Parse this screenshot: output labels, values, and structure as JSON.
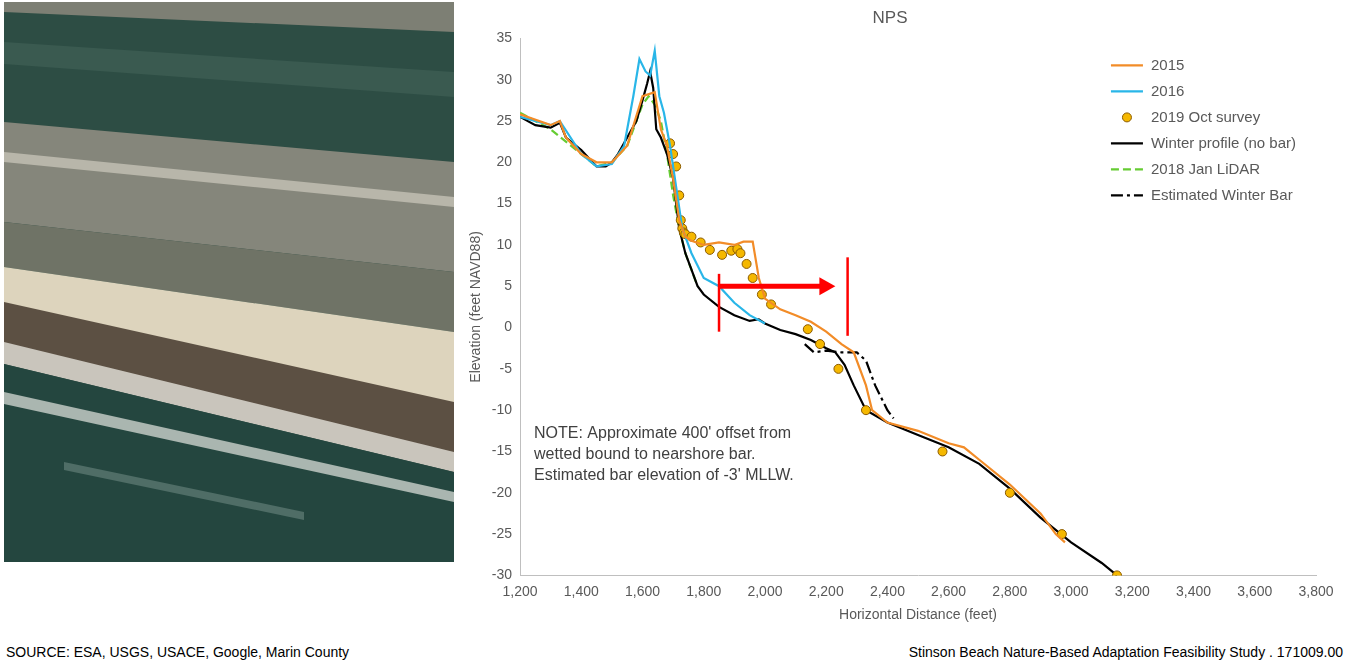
{
  "chart_data": {
    "type": "line",
    "title": "NPS",
    "x_label": "Horizontal Distance (feet)",
    "y_label": "Elevation (feet NAVD88)",
    "xlim": [
      1200,
      3800
    ],
    "xticks": [
      1200,
      1400,
      1600,
      1800,
      2000,
      2200,
      2400,
      2600,
      2800,
      3000,
      3200,
      3400,
      3600,
      3800
    ],
    "ylim": [
      -30,
      35
    ],
    "yticks": [
      -30,
      -25,
      -20,
      -15,
      -10,
      -5,
      0,
      5,
      10,
      15,
      20,
      25,
      30,
      35
    ],
    "grid": false,
    "legend": "upper right",
    "series": [
      {
        "name": "2015",
        "color": "#f28c28",
        "line_style": "solid",
        "marker": "none",
        "x": [
          1200,
          1300,
          1330,
          1350,
          1400,
          1450,
          1500,
          1550,
          1600,
          1640,
          1660,
          1680,
          1700,
          1720,
          1740,
          1760,
          1800,
          1850,
          1900,
          1930,
          1960,
          1980,
          2000,
          2050,
          2100,
          2150,
          2200,
          2250,
          2290,
          2330,
          2350,
          2400,
          2500,
          2600,
          2650,
          2700,
          2800,
          2900,
          2950,
          2980
        ],
        "values": [
          25.8,
          24.5,
          25,
          23,
          21,
          20,
          20,
          22,
          28,
          28.5,
          24,
          22,
          18,
          13,
          11,
          10.5,
          10,
          10.3,
          10,
          10.4,
          10.4,
          6,
          3.5,
          2.2,
          1.5,
          0.7,
          -0.5,
          -2,
          -3,
          -7,
          -10,
          -11.5,
          -12.5,
          -14,
          -14.5,
          -16,
          -19,
          -22.5,
          -25,
          -26
        ]
      },
      {
        "name": "2016",
        "color": "#29b6e8",
        "line_style": "solid",
        "marker": "none",
        "x": [
          1200,
          1300,
          1330,
          1400,
          1450,
          1500,
          1540,
          1570,
          1590,
          1610,
          1625,
          1640,
          1655,
          1670,
          1690,
          1710,
          1730,
          1760,
          1800,
          1850,
          1900,
          1950,
          2000
        ],
        "values": [
          25.5,
          24.5,
          25,
          21,
          19.5,
          19.8,
          22,
          28,
          32.5,
          31,
          30.5,
          33.5,
          28,
          26,
          22,
          17,
          12,
          9,
          6,
          5,
          3,
          1.5,
          0.5
        ]
      },
      {
        "name": "2019 Oct survey",
        "color": "#f5b800",
        "line_style": "none",
        "marker": "circle",
        "x": [
          1690,
          1700,
          1710,
          1720,
          1725,
          1730,
          1735,
          1740,
          1760,
          1790,
          1820,
          1860,
          1890,
          1910,
          1920,
          1940,
          1960,
          1990,
          2020,
          2140,
          2180,
          2240,
          2330,
          2580,
          2800,
          2970,
          3150
        ],
        "values": [
          22.3,
          21,
          19.5,
          16,
          13,
          12,
          11.5,
          11.3,
          11,
          10.3,
          9.4,
          8.8,
          9.3,
          9.5,
          9,
          7.7,
          6,
          4,
          2.8,
          -0.2,
          -2,
          -5,
          -10,
          -15,
          -20,
          -25,
          -30
        ]
      },
      {
        "name": "Winter profile (no bar)",
        "color": "#000000",
        "line_style": "solid",
        "marker": "none",
        "x": [
          1200,
          1250,
          1300,
          1330,
          1350,
          1400,
          1450,
          1480,
          1500,
          1520,
          1550,
          1580,
          1600,
          1615,
          1625,
          1635,
          1645,
          1660,
          1680,
          1700,
          1710,
          1720,
          1740,
          1760,
          1780,
          1800,
          1850,
          1900,
          1950,
          1980,
          2000,
          2050,
          2100,
          2150,
          2200,
          2230,
          2260,
          2290,
          2330,
          2400,
          2500,
          2600,
          2700,
          2800,
          2900,
          3000,
          3100,
          3150
        ],
        "values": [
          25.5,
          24.5,
          24.2,
          24.8,
          23,
          21.5,
          19.5,
          19.5,
          20,
          21,
          23,
          25,
          27.5,
          29.5,
          31,
          29,
          24,
          23,
          21,
          18,
          15,
          12,
          9,
          7,
          5,
          4,
          2.5,
          1.5,
          0.8,
          1,
          0.5,
          -0.3,
          -0.8,
          -1.5,
          -2.5,
          -3,
          -4.5,
          -7,
          -10,
          -11.5,
          -13,
          -14.5,
          -16.5,
          -19.5,
          -23,
          -26,
          -28.5,
          -30
        ]
      },
      {
        "name": "2018 Jan LiDAR",
        "color": "#66cc33",
        "line_style": "dashed",
        "marker": "none",
        "x": [
          1200,
          1300,
          1400,
          1450,
          1500,
          1550,
          1600,
          1620,
          1640,
          1660,
          1680,
          1700,
          1720,
          1740,
          1760,
          1780
        ],
        "values": [
          26,
          24,
          21,
          19.5,
          20,
          22,
          27,
          28,
          27,
          25,
          21,
          16,
          12,
          9,
          7,
          5
        ]
      },
      {
        "name": "Estimated Winter Bar",
        "color": "#000000",
        "line_style": "dashdot",
        "marker": "none",
        "x": [
          2130,
          2160,
          2200,
          2250,
          2300,
          2330,
          2360,
          2400,
          2420
        ],
        "values": [
          -2,
          -3,
          -2.8,
          -3,
          -3,
          -4,
          -7,
          -10,
          -11
        ]
      }
    ],
    "arrow": {
      "color": "#ff0000",
      "x_start": 1850,
      "x_end": 2230,
      "y": 5,
      "bars": [
        {
          "x": 1850,
          "y": [
            -0.5,
            6.5
          ]
        },
        {
          "x": 2270,
          "y": [
            -1,
            8.5
          ]
        }
      ]
    },
    "note": [
      "NOTE: Approximate 400' offset from",
      "wetted bound to nearshore bar.",
      "Estimated bar elevation of -3' MLLW."
    ]
  },
  "page": {
    "source": "SOURCE: ESA, USGS, USACE, Google, Marin County",
    "footer": "Stinson Beach Nature-Based Adaptation Feasibility Study . 171009.00"
  }
}
